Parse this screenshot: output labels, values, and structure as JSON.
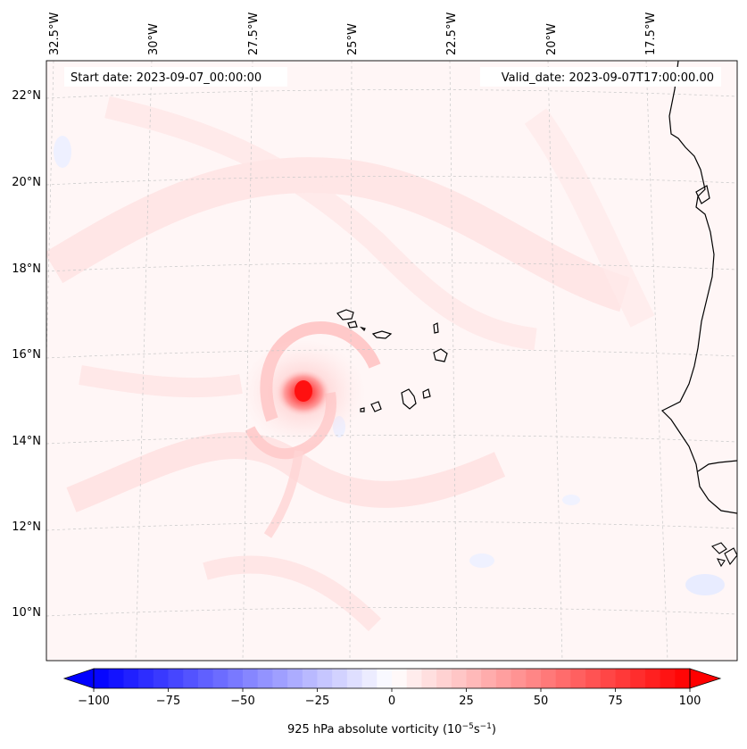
{
  "map": {
    "start_label": "Start date: 2023-09-07_00:00:00",
    "valid_label": "Valid_date: 2023-09-07T17:00:00.00",
    "lon_labels": [
      "32.5°W",
      "30°W",
      "27.5°W",
      "25°W",
      "22.5°W",
      "20°W",
      "17.5°W"
    ],
    "lat_labels": [
      "22°N",
      "20°N",
      "18°N",
      "16°N",
      "14°N",
      "12°N",
      "10°N"
    ],
    "field": "925 hPa absolute vorticity",
    "vortex_center": {
      "lon": "27.3°W",
      "lat": "15.1°N"
    }
  },
  "colorbar": {
    "min": -100,
    "max": 100,
    "tick_values": [
      -100,
      -75,
      -50,
      -25,
      0,
      25,
      50,
      75,
      100
    ],
    "tick_labels": [
      "−100",
      "−75",
      "−50",
      "−25",
      "0",
      "25",
      "50",
      "75",
      "100"
    ],
    "label_main": "925 hPa absolute vorticity (10",
    "label_exp1": "−5",
    "label_mid": "s",
    "label_exp2": "−1",
    "label_end": ")",
    "negative_color": "#0000ff",
    "positive_color": "#ff0000",
    "neutral_color": "#ffffff"
  }
}
